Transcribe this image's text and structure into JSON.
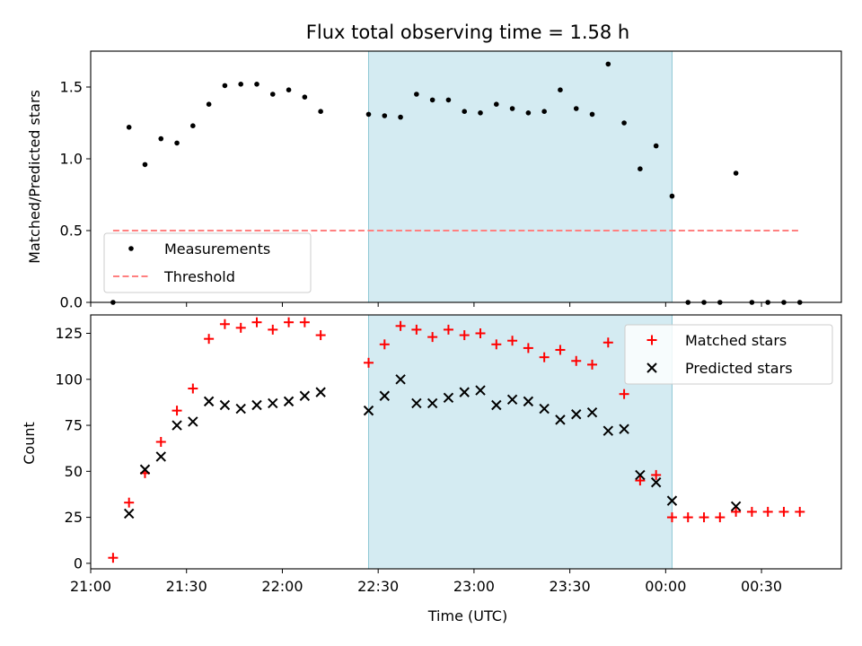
{
  "chart_data": [
    {
      "type": "scatter",
      "title": "Flux total observing time = 1.58 h",
      "ylabel": "Matched/Predicted stars",
      "ylim": [
        0,
        1.75
      ],
      "xlim": [
        "21:00",
        "00:55"
      ],
      "yticks": [
        "0.0",
        "0.5",
        "1.0",
        "1.5"
      ],
      "legend_placement": "lower-left",
      "shaded_interval": [
        "22:27",
        "00:02"
      ],
      "shade_color": "#add8e6",
      "series": [
        {
          "name": "Measurements",
          "marker": "dot",
          "color": "#000000",
          "x": [
            "21:07",
            "21:12",
            "21:17",
            "21:22",
            "21:27",
            "21:32",
            "21:37",
            "21:42",
            "21:47",
            "21:52",
            "21:57",
            "22:02",
            "22:07",
            "22:12",
            "22:27",
            "22:32",
            "22:37",
            "22:42",
            "22:47",
            "22:52",
            "22:57",
            "23:02",
            "23:07",
            "23:12",
            "23:17",
            "23:22",
            "23:27",
            "23:32",
            "23:37",
            "23:42",
            "23:47",
            "23:52",
            "23:57",
            "00:02",
            "00:07",
            "00:12",
            "00:17",
            "00:22",
            "00:27",
            "00:32",
            "00:37",
            "00:42"
          ],
          "y": [
            0.0,
            1.22,
            0.96,
            1.14,
            1.11,
            1.23,
            1.38,
            1.51,
            1.52,
            1.52,
            1.45,
            1.48,
            1.43,
            1.33,
            1.31,
            1.3,
            1.29,
            1.45,
            1.41,
            1.41,
            1.33,
            1.32,
            1.38,
            1.35,
            1.32,
            1.33,
            1.48,
            1.35,
            1.31,
            1.66,
            1.25,
            0.93,
            1.09,
            0.74,
            0.0,
            0.0,
            0.0,
            0.9,
            0.0,
            0.0,
            0.0,
            0.0
          ]
        },
        {
          "name": "Threshold",
          "marker": "dashed-line",
          "color": "#ff8080",
          "x": [
            "21:07",
            "00:42"
          ],
          "y": [
            0.5,
            0.5
          ]
        }
      ]
    },
    {
      "type": "scatter",
      "xlabel": "Time (UTC)",
      "ylabel": "Count",
      "ylim": [
        -3,
        135
      ],
      "xlim": [
        "21:00",
        "00:55"
      ],
      "xticks": [
        "21:00",
        "21:30",
        "22:00",
        "22:30",
        "23:00",
        "23:30",
        "00:00",
        "00:30"
      ],
      "yticks": [
        "0",
        "25",
        "50",
        "75",
        "100",
        "125"
      ],
      "legend_placement": "upper-right",
      "shaded_interval": [
        "22:27",
        "00:02"
      ],
      "shade_color": "#add8e6",
      "series": [
        {
          "name": "Matched stars",
          "marker": "plus",
          "color": "#ff0000",
          "x": [
            "21:07",
            "21:12",
            "21:17",
            "21:22",
            "21:27",
            "21:32",
            "21:37",
            "21:42",
            "21:47",
            "21:52",
            "21:57",
            "22:02",
            "22:07",
            "22:12",
            "22:27",
            "22:32",
            "22:37",
            "22:42",
            "22:47",
            "22:52",
            "22:57",
            "23:02",
            "23:07",
            "23:12",
            "23:17",
            "23:22",
            "23:27",
            "23:32",
            "23:37",
            "23:42",
            "23:47",
            "23:52",
            "23:57",
            "00:02",
            "00:07",
            "00:12",
            "00:17",
            "00:22",
            "00:27",
            "00:32",
            "00:37",
            "00:42"
          ],
          "y": [
            3,
            33,
            49,
            66,
            83,
            95,
            122,
            130,
            128,
            131,
            127,
            131,
            131,
            124,
            109,
            119,
            129,
            127,
            123,
            127,
            124,
            125,
            119,
            121,
            117,
            112,
            116,
            110,
            108,
            120,
            92,
            45,
            48,
            25,
            25,
            25,
            25,
            28,
            28,
            28,
            28,
            28
          ]
        },
        {
          "name": "Predicted stars",
          "marker": "x",
          "color": "#000000",
          "x": [
            "21:12",
            "21:17",
            "21:22",
            "21:27",
            "21:32",
            "21:37",
            "21:42",
            "21:47",
            "21:52",
            "21:57",
            "22:02",
            "22:07",
            "22:12",
            "22:27",
            "22:32",
            "22:37",
            "22:42",
            "22:47",
            "22:52",
            "22:57",
            "23:02",
            "23:07",
            "23:12",
            "23:17",
            "23:22",
            "23:27",
            "23:32",
            "23:37",
            "23:42",
            "23:47",
            "23:52",
            "23:57",
            "00:02",
            "00:22"
          ],
          "y": [
            27,
            51,
            58,
            75,
            77,
            88,
            86,
            84,
            86,
            87,
            88,
            91,
            93,
            83,
            91,
            100,
            87,
            87,
            90,
            93,
            94,
            86,
            89,
            88,
            84,
            78,
            81,
            82,
            72,
            73,
            48,
            44,
            34,
            31
          ]
        }
      ]
    }
  ]
}
